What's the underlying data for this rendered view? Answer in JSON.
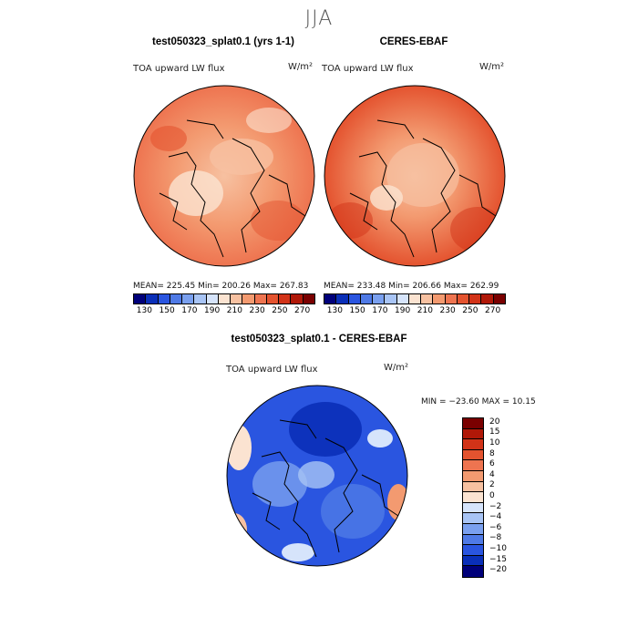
{
  "season": "JJA",
  "panels": [
    {
      "title": "test050323_splat0.1 (yrs 1-1)",
      "variable": "TOA upward LW flux",
      "units": "W/m²",
      "stats": "MEAN= 225.45   Min= 200.26   Max= 267.83"
    },
    {
      "title": "CERES-EBAF",
      "variable": "TOA upward LW flux",
      "units": "W/m²",
      "stats": "MEAN= 233.48   Min= 206.66   Max= 262.99"
    }
  ],
  "colorbar_top": {
    "labels": [
      "130",
      "150",
      "170",
      "190",
      "210",
      "230",
      "250",
      "270"
    ],
    "colors": [
      "#00007a",
      "#0a2fb8",
      "#2a55e0",
      "#4f7ae6",
      "#7aa0ef",
      "#a8c4f5",
      "#d6e4fb",
      "#fbe3d1",
      "#f7c1a1",
      "#f39a70",
      "#ee7450",
      "#e4532f",
      "#d23318",
      "#b01808",
      "#7a0000"
    ]
  },
  "diff_panel": {
    "title": "test050323_splat0.1 - CERES-EBAF",
    "variable": "TOA upward LW flux",
    "units": "W/m²",
    "minmax": "MIN = −23.60  MAX =   10.15"
  },
  "colorbar_diff": {
    "labels": [
      "20",
      "15",
      "10",
      "8",
      "6",
      "4",
      "2",
      "0",
      "−2",
      "−4",
      "−6",
      "−8",
      "−10",
      "−15",
      "−20"
    ],
    "colors": [
      "#7a0000",
      "#b01808",
      "#d23318",
      "#e4532f",
      "#ee7450",
      "#f39a70",
      "#f7c1a1",
      "#fbe3d1",
      "#d6e4fb",
      "#a8c4f5",
      "#7aa0ef",
      "#4f7ae6",
      "#2a55e0",
      "#0a2fb8",
      "#00007a"
    ]
  }
}
